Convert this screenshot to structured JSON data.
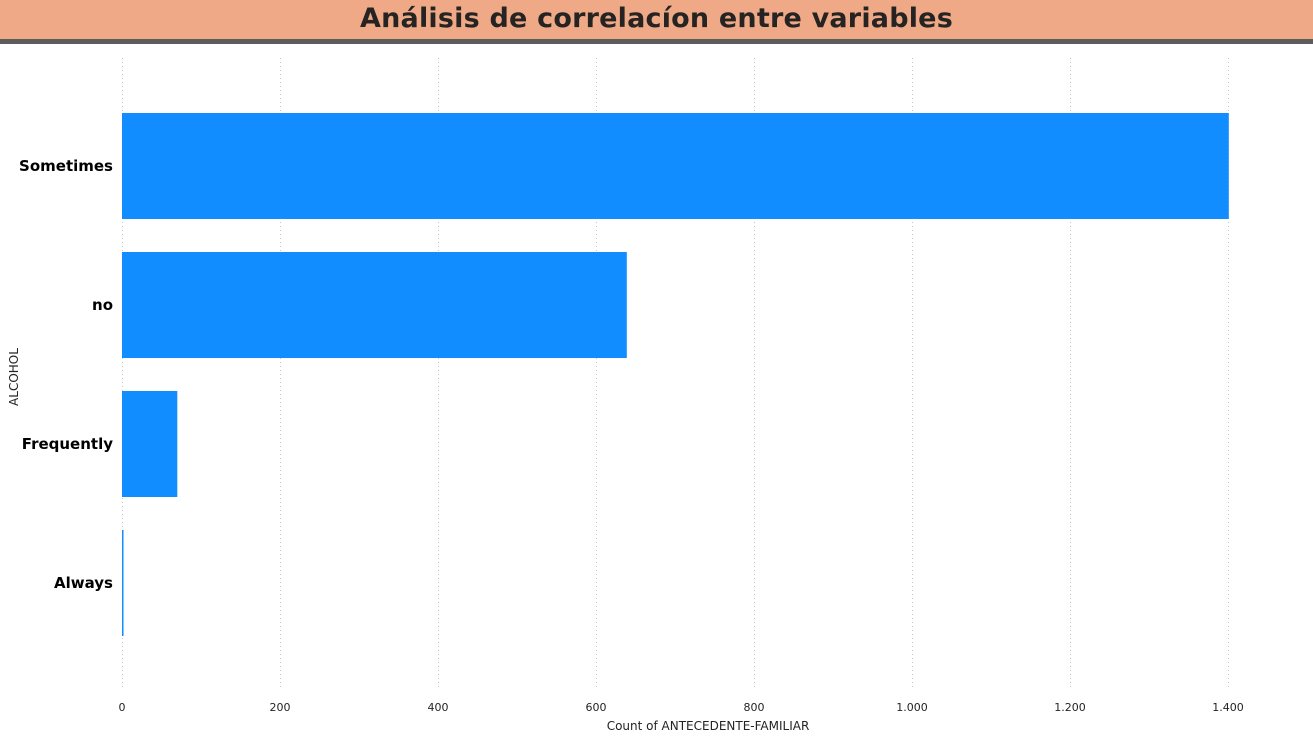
{
  "page": {
    "title": "Análisis de correlacíon entre variables",
    "banner_color": "#F0A986",
    "banner_border_color": "#5C5C5C"
  },
  "chart_data": {
    "type": "bar",
    "orientation": "horizontal",
    "categories": [
      "Sometimes",
      "no",
      "Frequently",
      "Always"
    ],
    "values": [
      1401,
      639,
      70,
      1
    ],
    "xlabel": "Count of ANTECEDENTE-FAMILIAR",
    "ylabel": "ALCOHOL",
    "xlim": [
      0,
      1400
    ],
    "xticks": [
      0,
      200,
      400,
      600,
      800,
      1000,
      1200,
      1400
    ],
    "xtick_labels": [
      "0",
      "200",
      "400",
      "600",
      "800",
      "1.000",
      "1.200",
      "1.400"
    ],
    "grid": true,
    "grid_style": "dotted vertical",
    "bar_color": "#118DFF",
    "legend": "none"
  }
}
